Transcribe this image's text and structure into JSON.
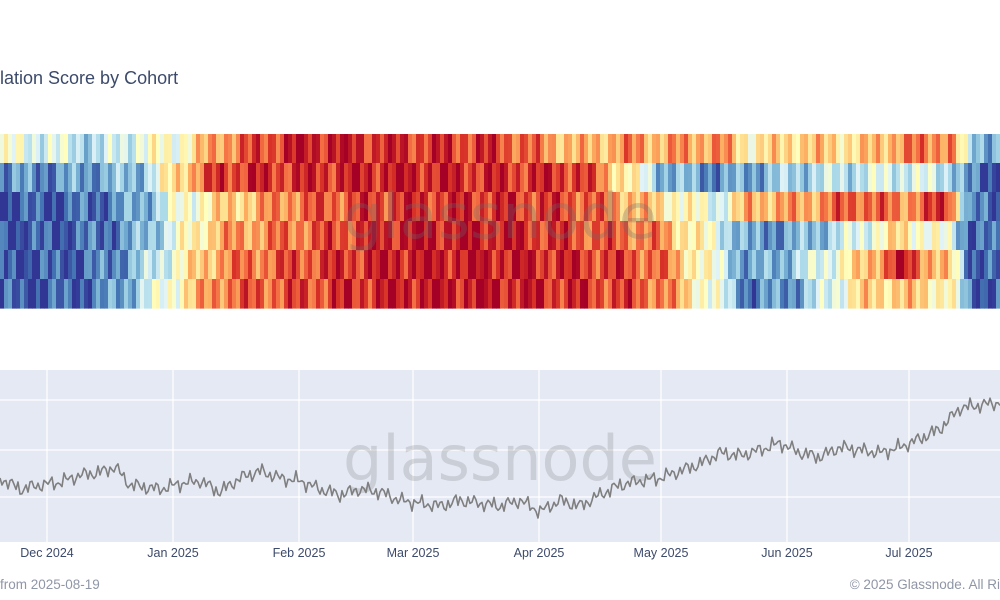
{
  "chart_title": "lation Score by Cohort",
  "watermark": "glassnode",
  "footer": {
    "left": "from 2025-08-19",
    "right": "© 2025 Glassnode. All Ri"
  },
  "colors": {
    "scale": [
      "#313695",
      "#4575b4",
      "#74add1",
      "#abd9e9",
      "#e0f3f8",
      "#ffffbf",
      "#fee090",
      "#fdae61",
      "#f46d43",
      "#d73027",
      "#a50026"
    ],
    "price_line": "#7f7f7f",
    "plot_bg": "#e5e9f4",
    "grid": "#ffffff",
    "tick_text": "#3c4a6b"
  },
  "chart_data": [
    {
      "type": "heatmap",
      "title": "lation Score by Cohort",
      "rows": 6,
      "value_range": [
        0,
        1
      ],
      "keyframes": [
        {
          "t": 0,
          "values": [
            0.45,
            0.15,
            0.05,
            0.05,
            0.05,
            0.05
          ]
        },
        {
          "t": 5,
          "values": [
            0.4,
            0.15,
            0.05,
            0.05,
            0.05,
            0.05
          ]
        },
        {
          "t": 10,
          "values": [
            0.3,
            0.2,
            0.1,
            0.1,
            0.1,
            0.1
          ]
        },
        {
          "t": 14,
          "values": [
            0.45,
            0.25,
            0.2,
            0.2,
            0.25,
            0.3
          ]
        },
        {
          "t": 18,
          "values": [
            0.5,
            0.65,
            0.45,
            0.45,
            0.5,
            0.55
          ]
        },
        {
          "t": 22,
          "values": [
            0.75,
            0.9,
            0.6,
            0.7,
            0.75,
            0.8
          ]
        },
        {
          "t": 30,
          "values": [
            0.95,
            0.9,
            0.8,
            0.8,
            0.85,
            0.85
          ]
        },
        {
          "t": 40,
          "values": [
            0.9,
            0.95,
            0.9,
            0.95,
            0.95,
            0.95
          ]
        },
        {
          "t": 50,
          "values": [
            0.88,
            0.9,
            0.9,
            0.95,
            0.95,
            0.95
          ]
        },
        {
          "t": 58,
          "values": [
            0.65,
            0.9,
            0.85,
            0.85,
            0.9,
            0.9
          ]
        },
        {
          "t": 63,
          "values": [
            0.75,
            0.55,
            0.7,
            0.8,
            0.85,
            0.85
          ]
        },
        {
          "t": 66,
          "values": [
            0.7,
            0.25,
            0.6,
            0.75,
            0.8,
            0.8
          ]
        },
        {
          "t": 72,
          "values": [
            0.75,
            0.15,
            0.4,
            0.4,
            0.4,
            0.4
          ]
        },
        {
          "t": 75,
          "values": [
            0.55,
            0.2,
            0.7,
            0.15,
            0.15,
            0.1
          ]
        },
        {
          "t": 80,
          "values": [
            0.65,
            0.3,
            0.7,
            0.2,
            0.3,
            0.2
          ]
        },
        {
          "t": 86,
          "values": [
            0.6,
            0.35,
            0.85,
            0.4,
            0.6,
            0.6
          ]
        },
        {
          "t": 90,
          "values": [
            0.75,
            0.4,
            0.75,
            0.6,
            0.95,
            0.65
          ]
        },
        {
          "t": 95,
          "values": [
            0.8,
            0.35,
            0.9,
            0.4,
            0.6,
            0.55
          ]
        },
        {
          "t": 97,
          "values": [
            0.3,
            0.1,
            0.1,
            0.1,
            0.1,
            0.1
          ]
        },
        {
          "t": 100,
          "values": [
            0.2,
            0.05,
            0.05,
            0.05,
            0.05,
            0.05
          ]
        }
      ]
    },
    {
      "type": "line",
      "series": [
        {
          "name": "",
          "x_pct": [
            0,
            2,
            4,
            6,
            8,
            10,
            11.5,
            13,
            16,
            18,
            20,
            22,
            24,
            26,
            28,
            30,
            32,
            34,
            36,
            38,
            40,
            42,
            44,
            46,
            48,
            50,
            52,
            54,
            56,
            58,
            60,
            62,
            64,
            66,
            68,
            70,
            72,
            74,
            76,
            78,
            80,
            82,
            84,
            86,
            88,
            90,
            92,
            94,
            96,
            98,
            100
          ],
          "y_pct": [
            30,
            22,
            25,
            27,
            32,
            34,
            38,
            25,
            22,
            26,
            28,
            20,
            30,
            35,
            30,
            28,
            22,
            18,
            22,
            20,
            14,
            12,
            10,
            14,
            12,
            10,
            14,
            6,
            14,
            10,
            18,
            25,
            28,
            30,
            35,
            40,
            48,
            46,
            50,
            55,
            48,
            45,
            52,
            50,
            48,
            52,
            58,
            65,
            80,
            82,
            84
          ]
        }
      ],
      "ylim": [
        0,
        100
      ]
    }
  ],
  "x_ticks": [
    {
      "label": "Dec 2024",
      "pos_pct": 4.7
    },
    {
      "label": "Jan 2025",
      "pos_pct": 17.3
    },
    {
      "label": "Feb 2025",
      "pos_pct": 29.9
    },
    {
      "label": "Mar 2025",
      "pos_pct": 41.3
    },
    {
      "label": "Apr 2025",
      "pos_pct": 53.9
    },
    {
      "label": "May 2025",
      "pos_pct": 66.1
    },
    {
      "label": "Jun 2025",
      "pos_pct": 78.7
    },
    {
      "label": "Jul 2025",
      "pos_pct": 90.9
    }
  ]
}
